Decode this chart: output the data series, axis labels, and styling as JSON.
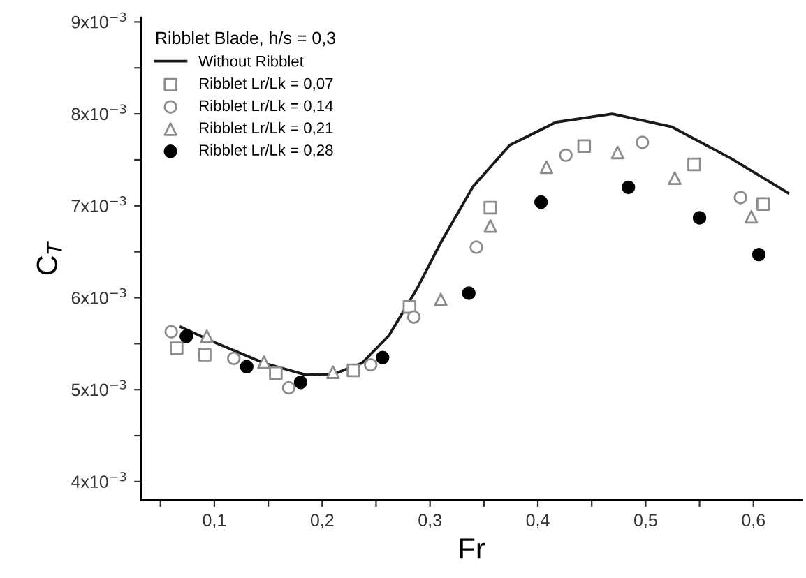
{
  "chart_data": {
    "type": "scatter",
    "xlabel": "Fr",
    "ylabel": "C$_{T}$",
    "legend_title": "Ribblet Blade, h/s = 0,3",
    "xlim": [
      0.032,
      0.645
    ],
    "ylim": [
      0.0038,
      0.00905
    ],
    "xticks": [
      {
        "value": 0.05,
        "label": null
      },
      {
        "value": 0.1,
        "label": "0,1"
      },
      {
        "value": 0.15,
        "label": null
      },
      {
        "value": 0.2,
        "label": "0,2"
      },
      {
        "value": 0.25,
        "label": null
      },
      {
        "value": 0.3,
        "label": "0,3"
      },
      {
        "value": 0.35,
        "label": null
      },
      {
        "value": 0.4,
        "label": "0,4"
      },
      {
        "value": 0.45,
        "label": null
      },
      {
        "value": 0.5,
        "label": "0,5"
      },
      {
        "value": 0.55,
        "label": null
      },
      {
        "value": 0.6,
        "label": "0,6"
      }
    ],
    "yticks": [
      {
        "value": 0.004,
        "label": "4x10$^{−3}$"
      },
      {
        "value": 0.0045,
        "label": null
      },
      {
        "value": 0.005,
        "label": "5x10$^{−3}$"
      },
      {
        "value": 0.0055,
        "label": null
      },
      {
        "value": 0.006,
        "label": "6x10$^{−3}$"
      },
      {
        "value": 0.0065,
        "label": null
      },
      {
        "value": 0.007,
        "label": "7x10$^{−3}$"
      },
      {
        "value": 0.0075,
        "label": null
      },
      {
        "value": 0.008,
        "label": "8x10$^{−3}$"
      },
      {
        "value": 0.0085,
        "label": null
      },
      {
        "value": 0.009,
        "label": "9x10$^{−3}$"
      }
    ],
    "grid": false,
    "legend": "top left",
    "series": [
      {
        "name": "Without Ribblet",
        "type": "line",
        "color": "#1a1a1a",
        "marker": "none",
        "line_style": "solid",
        "x": [
          0.069,
          0.099,
          0.146,
          0.185,
          0.211,
          0.237,
          0.262,
          0.288,
          0.31,
          0.34,
          0.374,
          0.417,
          0.469,
          0.524,
          0.58,
          0.632
        ],
        "values": [
          0.00568,
          0.00552,
          0.00529,
          0.00516,
          0.00517,
          0.00529,
          0.00559,
          0.0061,
          0.0066,
          0.00721,
          0.00766,
          0.00791,
          0.008,
          0.00786,
          0.00751,
          0.00714
        ]
      },
      {
        "name": "Ribblet Lr/Lk = 0,07",
        "color": "#8c8c8c",
        "marker": "square",
        "x": [
          0.065,
          0.091,
          0.157,
          0.229,
          0.281,
          0.356,
          0.443,
          0.545,
          0.609
        ],
        "values": [
          0.00545,
          0.00538,
          0.00518,
          0.00521,
          0.0059,
          0.00698,
          0.00765,
          0.00745,
          0.00702
        ]
      },
      {
        "name": "Ribblet Lr/Lk = 0,14",
        "color": "#8c8c8c",
        "marker": "circle",
        "x": [
          0.06,
          0.118,
          0.169,
          0.245,
          0.285,
          0.343,
          0.426,
          0.497,
          0.588
        ],
        "values": [
          0.00563,
          0.00534,
          0.00502,
          0.00527,
          0.00579,
          0.00655,
          0.00755,
          0.00769,
          0.00709
        ]
      },
      {
        "name": "Ribblet Lr/Lk = 0,21",
        "color": "#8c8c8c",
        "marker": "triangle",
        "x": [
          0.093,
          0.146,
          0.21,
          0.31,
          0.356,
          0.408,
          0.474,
          0.527,
          0.598
        ],
        "values": [
          0.00558,
          0.0053,
          0.00519,
          0.00598,
          0.00678,
          0.00742,
          0.00758,
          0.0073,
          0.00688
        ]
      },
      {
        "name": "Ribblet Lr/Lk = 0,28",
        "color": "#000000",
        "marker": "circle",
        "x": [
          0.074,
          0.13,
          0.18,
          0.256,
          0.336,
          0.403,
          0.484,
          0.55,
          0.605
        ],
        "values": [
          0.00558,
          0.00525,
          0.00508,
          0.00535,
          0.00605,
          0.00704,
          0.0072,
          0.00687,
          0.00647
        ]
      }
    ]
  }
}
